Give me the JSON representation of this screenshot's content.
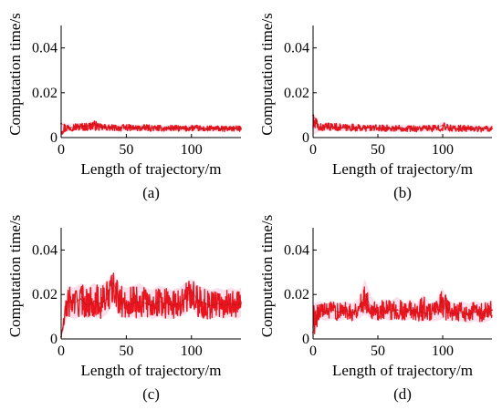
{
  "chart_data": [
    {
      "type": "line",
      "panel_label": "(a)",
      "xlabel": "Length of trajectory/m",
      "ylabel": "Computation time/s",
      "xlim": [
        0,
        138
      ],
      "ylim": [
        0,
        0.05
      ],
      "xticks": [
        0,
        50,
        100
      ],
      "xtick_labels": [
        "0",
        "50",
        "100"
      ],
      "yticks": [
        0,
        0.02,
        0.04
      ],
      "ytick_labels": [
        "0",
        "0.02",
        "0.04"
      ],
      "grid": false,
      "series": [
        {
          "color": "#e8141e",
          "x": [
            0,
            5,
            10,
            15,
            20,
            25,
            30,
            35,
            40,
            45,
            50,
            55,
            60,
            65,
            70,
            75,
            80,
            85,
            90,
            95,
            100,
            105,
            110,
            115,
            120,
            125,
            130,
            135,
            138
          ],
          "y": [
            0.0062,
            0.0045,
            0.0048,
            0.005,
            0.0052,
            0.0065,
            0.0048,
            0.0046,
            0.0044,
            0.0042,
            0.0047,
            0.0044,
            0.0041,
            0.0045,
            0.0043,
            0.0042,
            0.004,
            0.0043,
            0.0041,
            0.0039,
            0.0045,
            0.0042,
            0.0038,
            0.0041,
            0.004,
            0.0038,
            0.0041,
            0.0039,
            0.004
          ],
          "y_min": [
            0.001,
            0.0028,
            0.003,
            0.0031,
            0.003,
            0.0032,
            0.003,
            0.0029,
            0.003,
            0.0028,
            0.003,
            0.0029,
            0.0028,
            0.003,
            0.0028,
            0.0029,
            0.0027,
            0.0029,
            0.0028,
            0.0027,
            0.0029,
            0.0028,
            0.0026,
            0.0028,
            0.0027,
            0.0026,
            0.0028,
            0.0027,
            0.0028
          ],
          "y_max": [
            0.007,
            0.0062,
            0.0064,
            0.0066,
            0.0065,
            0.0078,
            0.0062,
            0.006,
            0.0058,
            0.0056,
            0.006,
            0.0057,
            0.0055,
            0.0058,
            0.0056,
            0.0055,
            0.0053,
            0.0056,
            0.0054,
            0.0052,
            0.0058,
            0.0055,
            0.0051,
            0.0054,
            0.0053,
            0.0051,
            0.0054,
            0.0052,
            0.0053
          ]
        }
      ]
    },
    {
      "type": "line",
      "panel_label": "(b)",
      "xlabel": "Length of trajectory/m",
      "ylabel": "Computation time/s",
      "xlim": [
        0,
        138
      ],
      "ylim": [
        0,
        0.05
      ],
      "xticks": [
        0,
        50,
        100
      ],
      "xtick_labels": [
        "0",
        "50",
        "100"
      ],
      "yticks": [
        0,
        0.02,
        0.04
      ],
      "ytick_labels": [
        "0",
        "0.02",
        "0.04"
      ],
      "grid": false,
      "series": [
        {
          "color": "#e8141e",
          "x": [
            0,
            5,
            10,
            15,
            20,
            25,
            30,
            35,
            40,
            45,
            50,
            55,
            60,
            65,
            70,
            75,
            80,
            85,
            90,
            95,
            100,
            105,
            110,
            115,
            120,
            125,
            130,
            135,
            138
          ],
          "y": [
            0.01,
            0.0045,
            0.0047,
            0.0049,
            0.0046,
            0.0044,
            0.0045,
            0.0043,
            0.0042,
            0.0044,
            0.0041,
            0.0043,
            0.004,
            0.0042,
            0.0041,
            0.004,
            0.0039,
            0.0041,
            0.004,
            0.0042,
            0.0055,
            0.0042,
            0.004,
            0.0041,
            0.0039,
            0.004,
            0.0038,
            0.0039,
            0.004
          ],
          "y_min": [
            0.001,
            0.0028,
            0.003,
            0.0031,
            0.0029,
            0.0028,
            0.0029,
            0.0028,
            0.0027,
            0.0028,
            0.0027,
            0.0028,
            0.0026,
            0.0027,
            0.0027,
            0.0026,
            0.0026,
            0.0027,
            0.0026,
            0.0027,
            0.0029,
            0.0027,
            0.0026,
            0.0027,
            0.0025,
            0.0026,
            0.0025,
            0.0026,
            0.0026
          ],
          "y_max": [
            0.0115,
            0.0062,
            0.0064,
            0.0066,
            0.0062,
            0.006,
            0.0061,
            0.0058,
            0.0057,
            0.0059,
            0.0056,
            0.0058,
            0.0055,
            0.0057,
            0.0056,
            0.0055,
            0.0054,
            0.0056,
            0.0055,
            0.0057,
            0.0068,
            0.0057,
            0.0055,
            0.0056,
            0.0054,
            0.0055,
            0.0053,
            0.0054,
            0.0055
          ]
        }
      ]
    },
    {
      "type": "line",
      "panel_label": "(c)",
      "xlabel": "Length of trajectory/m",
      "ylabel": "Computation time/s",
      "xlim": [
        0,
        138
      ],
      "ylim": [
        0,
        0.05
      ],
      "xticks": [
        0,
        50,
        100
      ],
      "xtick_labels": [
        "0",
        "50",
        "100"
      ],
      "yticks": [
        0,
        0.02,
        0.04
      ],
      "ytick_labels": [
        "0",
        "0.02",
        "0.04"
      ],
      "grid": false,
      "series": [
        {
          "color": "#e8141e",
          "x": [
            0,
            5,
            10,
            15,
            20,
            25,
            30,
            35,
            40,
            45,
            50,
            55,
            60,
            65,
            70,
            75,
            80,
            85,
            90,
            95,
            100,
            105,
            110,
            115,
            120,
            125,
            130,
            135,
            138
          ],
          "y": [
            0.001,
            0.017,
            0.016,
            0.018,
            0.015,
            0.017,
            0.016,
            0.018,
            0.026,
            0.017,
            0.015,
            0.016,
            0.017,
            0.016,
            0.015,
            0.017,
            0.016,
            0.015,
            0.016,
            0.018,
            0.022,
            0.017,
            0.016,
            0.015,
            0.016,
            0.015,
            0.016,
            0.015,
            0.016
          ],
          "y_min": [
            0.0,
            0.01,
            0.009,
            0.01,
            0.009,
            0.01,
            0.009,
            0.011,
            0.016,
            0.01,
            0.009,
            0.01,
            0.009,
            0.01,
            0.009,
            0.01,
            0.009,
            0.009,
            0.01,
            0.011,
            0.014,
            0.01,
            0.009,
            0.009,
            0.01,
            0.009,
            0.01,
            0.009,
            0.01
          ],
          "y_max": [
            0.002,
            0.024,
            0.023,
            0.025,
            0.023,
            0.025,
            0.024,
            0.026,
            0.03,
            0.024,
            0.023,
            0.024,
            0.025,
            0.023,
            0.022,
            0.024,
            0.023,
            0.022,
            0.023,
            0.025,
            0.027,
            0.024,
            0.023,
            0.022,
            0.023,
            0.022,
            0.023,
            0.022,
            0.023
          ]
        }
      ]
    },
    {
      "type": "line",
      "panel_label": "(d)",
      "xlabel": "Length of trajectory/m",
      "ylabel": "Computation time/s",
      "xlim": [
        0,
        138
      ],
      "ylim": [
        0,
        0.05
      ],
      "xticks": [
        0,
        50,
        100
      ],
      "xtick_labels": [
        "0",
        "50",
        "100"
      ],
      "yticks": [
        0,
        0.02,
        0.04
      ],
      "ytick_labels": [
        "0",
        "0.02",
        "0.04"
      ],
      "grid": false,
      "series": [
        {
          "color": "#e8141e",
          "x": [
            0,
            5,
            10,
            15,
            20,
            25,
            30,
            35,
            40,
            45,
            50,
            55,
            60,
            65,
            70,
            75,
            80,
            85,
            90,
            95,
            100,
            105,
            110,
            115,
            120,
            125,
            130,
            135,
            138
          ],
          "y": [
            0.003,
            0.013,
            0.012,
            0.013,
            0.012,
            0.013,
            0.012,
            0.013,
            0.02,
            0.014,
            0.012,
            0.013,
            0.012,
            0.013,
            0.012,
            0.013,
            0.012,
            0.012,
            0.011,
            0.012,
            0.018,
            0.012,
            0.011,
            0.012,
            0.011,
            0.012,
            0.011,
            0.012,
            0.013
          ],
          "y_min": [
            0.0,
            0.009,
            0.008,
            0.009,
            0.008,
            0.009,
            0.008,
            0.009,
            0.011,
            0.009,
            0.008,
            0.009,
            0.008,
            0.009,
            0.008,
            0.009,
            0.008,
            0.008,
            0.008,
            0.008,
            0.009,
            0.008,
            0.008,
            0.008,
            0.007,
            0.008,
            0.007,
            0.008,
            0.009
          ],
          "y_max": [
            0.016,
            0.017,
            0.016,
            0.017,
            0.016,
            0.017,
            0.016,
            0.018,
            0.027,
            0.019,
            0.016,
            0.018,
            0.017,
            0.019,
            0.016,
            0.018,
            0.016,
            0.02,
            0.016,
            0.017,
            0.023,
            0.017,
            0.016,
            0.017,
            0.016,
            0.017,
            0.016,
            0.017,
            0.017
          ]
        }
      ]
    }
  ]
}
